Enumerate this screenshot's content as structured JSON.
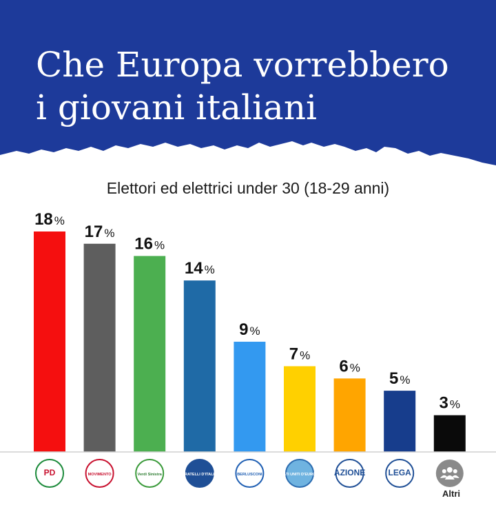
{
  "header": {
    "title_line1": "Che Europa vorrebbero",
    "title_line2": "i giovani italiani",
    "background": "#1d3a9a"
  },
  "chart_data": {
    "type": "bar",
    "subtitle": "Elettori ed elettrici under 30 (18-29 anni)",
    "categories": [
      "PD",
      "Movimento 5 Stelle",
      "Alleanza Verdi Sinistra",
      "Fratelli d'Italia",
      "Forza Italia",
      "Stati Uniti d'Europa",
      "Azione",
      "Lega",
      "Altri"
    ],
    "values": [
      18,
      17,
      16,
      14,
      9,
      7,
      6,
      5,
      3
    ],
    "value_suffix": "%",
    "colors": [
      "#f50f0f",
      "#5e5e5e",
      "#4caf50",
      "#1f6aa6",
      "#3399f0",
      "#ffd000",
      "#ffa500",
      "#173d8c",
      "#0a0a0a"
    ],
    "ylim": [
      0,
      18
    ],
    "grid": false,
    "legend": "none"
  },
  "logos": [
    {
      "icon": "pd-logo-icon",
      "text": "PD"
    },
    {
      "icon": "m5s-logo-icon",
      "text": "MOVIMENTO"
    },
    {
      "icon": "avs-logo-icon",
      "text": "Verdi Sinistra"
    },
    {
      "icon": "fdi-logo-icon",
      "text": "FRATELLI D'ITALIA"
    },
    {
      "icon": "fi-logo-icon",
      "text": "BERLUSCONI"
    },
    {
      "icon": "sue-logo-icon",
      "text": "STATI UNITI D'EUROPA"
    },
    {
      "icon": "azione-logo-icon",
      "text": "AZIONE"
    },
    {
      "icon": "lega-logo-icon",
      "text": "LEGA"
    },
    {
      "icon": "people-icon",
      "text": ""
    }
  ],
  "altri_label": "Altri"
}
